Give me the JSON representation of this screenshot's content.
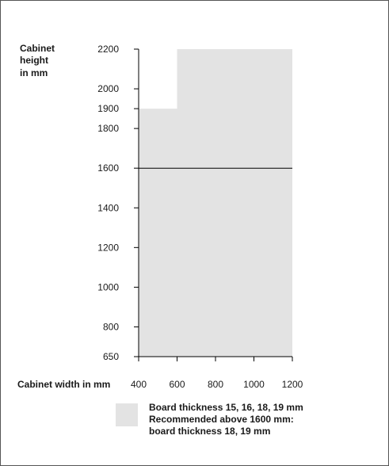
{
  "chart_data": {
    "type": "area",
    "ylabel_lines": [
      "Cabinet",
      "height",
      "in mm"
    ],
    "xlabel": "Cabinet width in mm",
    "x_ticks": [
      400,
      600,
      800,
      1000,
      1200
    ],
    "y_ticks": [
      650,
      800,
      1000,
      1200,
      1400,
      1600,
      1800,
      1900,
      2000,
      2200
    ],
    "xlim": [
      400,
      1200
    ],
    "ylim": [
      650,
      2200
    ],
    "region": {
      "points": [
        {
          "x": 400,
          "y": 650
        },
        {
          "x": 400,
          "y": 1900
        },
        {
          "x": 600,
          "y": 1900
        },
        {
          "x": 600,
          "y": 2200
        },
        {
          "x": 1200,
          "y": 2200
        },
        {
          "x": 1200,
          "y": 650
        }
      ],
      "color": "#e3e3e3"
    },
    "reference_line": {
      "y": 1600,
      "color": "#000000"
    },
    "legend": {
      "color": "#e3e3e3",
      "lines": [
        "Board thickness 15, 16, 18, 19 mm",
        "Recommended above 1600 mm:",
        "board thickness 18, 19 mm"
      ]
    }
  }
}
